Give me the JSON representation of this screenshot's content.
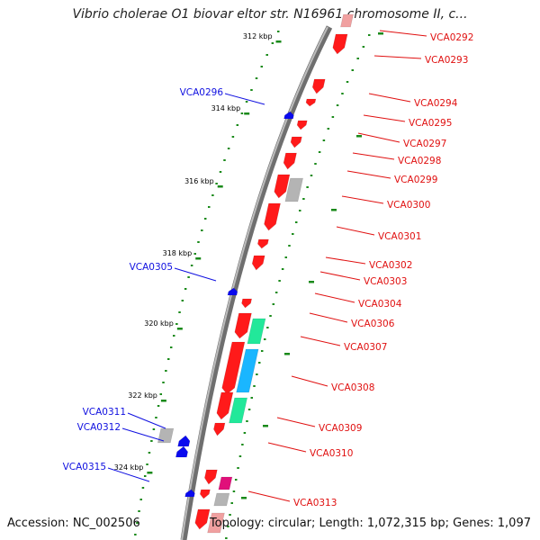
{
  "title": "Vibrio cholerae O1 biovar eltor str. N16961 chromosome II, c...",
  "footer": {
    "accession": "Accession: NC_002506",
    "topology": "Topology: circular; Length: 1,072,315 bp; Genes: 1,097"
  },
  "colors": {
    "backbone": "#8a8a8a",
    "cds_red": "#ff1a1a",
    "cds_blue": "#0a0aee",
    "cds_grey": "#b4b4b4",
    "cds_green": "#22e89a",
    "cds_cyan": "#1ab6ff",
    "cds_pink": "#f0a0a0",
    "cds_magenta": "#e0107a",
    "dots": "#1a8a1a",
    "label_forward": "#e01010",
    "label_reverse": "#1010e0"
  },
  "ticks": [
    "312 kbp",
    "314 kbp",
    "316 kbp",
    "318 kbp",
    "320 kbp",
    "322 kbp",
    "324 kbp"
  ],
  "forward_genes": [
    "VCA0292",
    "VCA0293",
    "VCA0294",
    "VCA0295",
    "VCA0297",
    "VCA0298",
    "VCA0299",
    "VCA0300",
    "VCA0301",
    "VCA0302",
    "VCA0303",
    "VCA0304",
    "VCA0306",
    "VCA0307",
    "VCA0308",
    "VCA0309",
    "VCA0310",
    "VCA0313"
  ],
  "reverse_genes": [
    "VCA0296",
    "VCA0305",
    "VCA0311",
    "VCA0312",
    "VCA0315"
  ]
}
